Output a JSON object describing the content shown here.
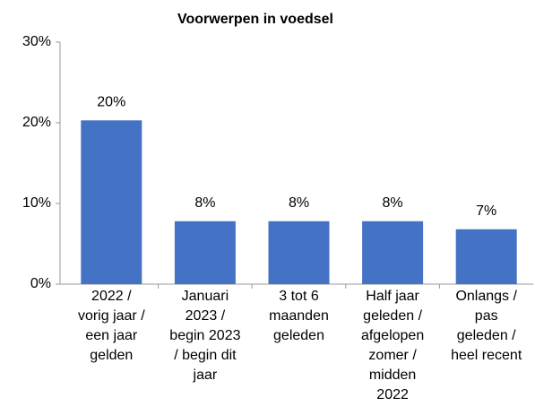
{
  "chart_data": {
    "type": "bar",
    "title": "Voorwerpen in voedsel",
    "categories": [
      [
        "2022 /",
        "vorig jaar /",
        "een jaar",
        "gelden"
      ],
      [
        "Januari",
        "2023 /",
        "begin 2023",
        "/ begin dit",
        "jaar"
      ],
      [
        "3 tot 6",
        "maanden",
        "geleden"
      ],
      [
        "Half jaar",
        "geleden /",
        "afgelopen",
        "zomer /",
        "midden",
        "2022"
      ],
      [
        "Onlangs /",
        "pas",
        "geleden /",
        "heel recent"
      ]
    ],
    "values": [
      20.3,
      7.8,
      7.8,
      7.8,
      6.8
    ],
    "value_labels": [
      "20%",
      "8%",
      "8%",
      "8%",
      "7%"
    ],
    "color": "#4472c4",
    "ylim": [
      0,
      30
    ],
    "yticks": [
      {
        "value": 0,
        "label": "0%"
      },
      {
        "value": 10,
        "label": "10%"
      },
      {
        "value": 20,
        "label": "20%"
      },
      {
        "value": 30,
        "label": "30%"
      }
    ],
    "grid": false
  }
}
